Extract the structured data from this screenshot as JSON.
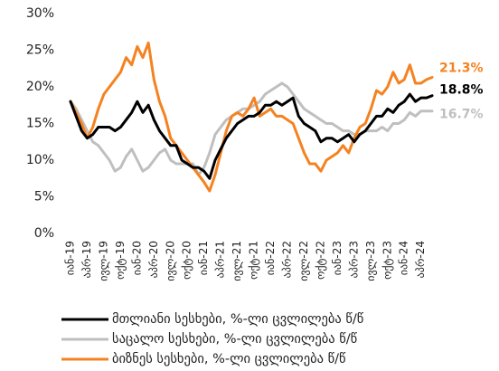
{
  "chart_data": {
    "type": "line",
    "categories": [
      "იან-19",
      null,
      null,
      "აპრ-19",
      null,
      null,
      "ივლ-19",
      null,
      null,
      "ოქტ-19",
      null,
      null,
      "იან-20",
      null,
      null,
      "აპრ-20",
      null,
      null,
      "ივლ-20",
      null,
      null,
      "ოქტ-20",
      null,
      null,
      "იან-21",
      null,
      null,
      "აპრ-21",
      null,
      null,
      "ივლ-21",
      null,
      null,
      "ოქტ-21",
      null,
      null,
      "იან-22",
      null,
      null,
      "აპრ-22",
      null,
      null,
      "ივლ-22",
      null,
      null,
      "ოქტ-22",
      null,
      null,
      "იან-23",
      null,
      null,
      "აპრ-23",
      null,
      null,
      "ივლ-23",
      null,
      null,
      "ოქტ-23",
      null,
      null,
      "იან-24",
      null,
      null,
      "აპრ-24",
      null,
      null
    ],
    "series": [
      {
        "name": "მთლიანი სესხები, %-ლი ცვლილება წ/წ",
        "color": "#000000",
        "end_label": "18.8%",
        "values": [
          18,
          16,
          14,
          13,
          13.5,
          14.5,
          14.5,
          14.5,
          14,
          14.5,
          15.5,
          16.5,
          18,
          16.5,
          17.5,
          15.5,
          14,
          13,
          12,
          12,
          10,
          9.5,
          9,
          9,
          8.5,
          7.5,
          10,
          11.5,
          13,
          14,
          15,
          15.5,
          16,
          16,
          16.5,
          17.5,
          17.5,
          18,
          17.5,
          18,
          18.5,
          16,
          15,
          14.5,
          14,
          12.5,
          13,
          13,
          12.5,
          13,
          13.5,
          12.5,
          13.5,
          14,
          15,
          16,
          16,
          17,
          16.5,
          17.5,
          18,
          19,
          18,
          18.5,
          18.5,
          18.8
        ]
      },
      {
        "name": "საცალო სესხები, %-ლი ცვლილება წ/წ",
        "color": "#bfbfbf",
        "end_label": "16.7%",
        "values": [
          18,
          17,
          15.5,
          14,
          12.5,
          12,
          11,
          10,
          8.5,
          9,
          10.5,
          11.5,
          10,
          8.5,
          9,
          10,
          11,
          11.5,
          10,
          9.5,
          9.5,
          9.5,
          9.5,
          8,
          9,
          11,
          13.5,
          14.5,
          15.5,
          16,
          16.5,
          17,
          17,
          17.5,
          18,
          19,
          19.5,
          20,
          20.5,
          20,
          19,
          18,
          17,
          16.5,
          16,
          15.5,
          15,
          15,
          14.5,
          14,
          14,
          13.5,
          13.5,
          14,
          14,
          14,
          14.5,
          14,
          15,
          15,
          15.5,
          16.5,
          16,
          16.7,
          16.7,
          16.7
        ]
      },
      {
        "name": "ბიზნეს სესხები, %-ლი ცვლილება წ/წ",
        "color": "#f58220",
        "end_label": "21.3%",
        "values": [
          18,
          16.5,
          15,
          13,
          14.5,
          17,
          19,
          20,
          21,
          22,
          24,
          23,
          25.5,
          24,
          26,
          21,
          18,
          16,
          13,
          12,
          11,
          10,
          9,
          8,
          7,
          5.8,
          8,
          11,
          14,
          16,
          16.5,
          16,
          17,
          18.5,
          16,
          16.5,
          17,
          16,
          16,
          15.5,
          15,
          13,
          11,
          9.5,
          9.5,
          8.5,
          10,
          10.5,
          11,
          12,
          11,
          13,
          14.5,
          15,
          17,
          19.5,
          19,
          20,
          22,
          20.5,
          21,
          23,
          20.5,
          20.5,
          21,
          21.3
        ]
      }
    ],
    "ylim": [
      0,
      30
    ],
    "yticks": [
      {
        "value": 0,
        "label": "0%"
      },
      {
        "value": 5,
        "label": "5%"
      },
      {
        "value": 10,
        "label": "10%"
      },
      {
        "value": 15,
        "label": "15%"
      },
      {
        "value": 20,
        "label": "20%"
      },
      {
        "value": 25,
        "label": "25%"
      },
      {
        "value": 30,
        "label": "30%"
      }
    ],
    "grid": false,
    "legend": "bottom"
  }
}
